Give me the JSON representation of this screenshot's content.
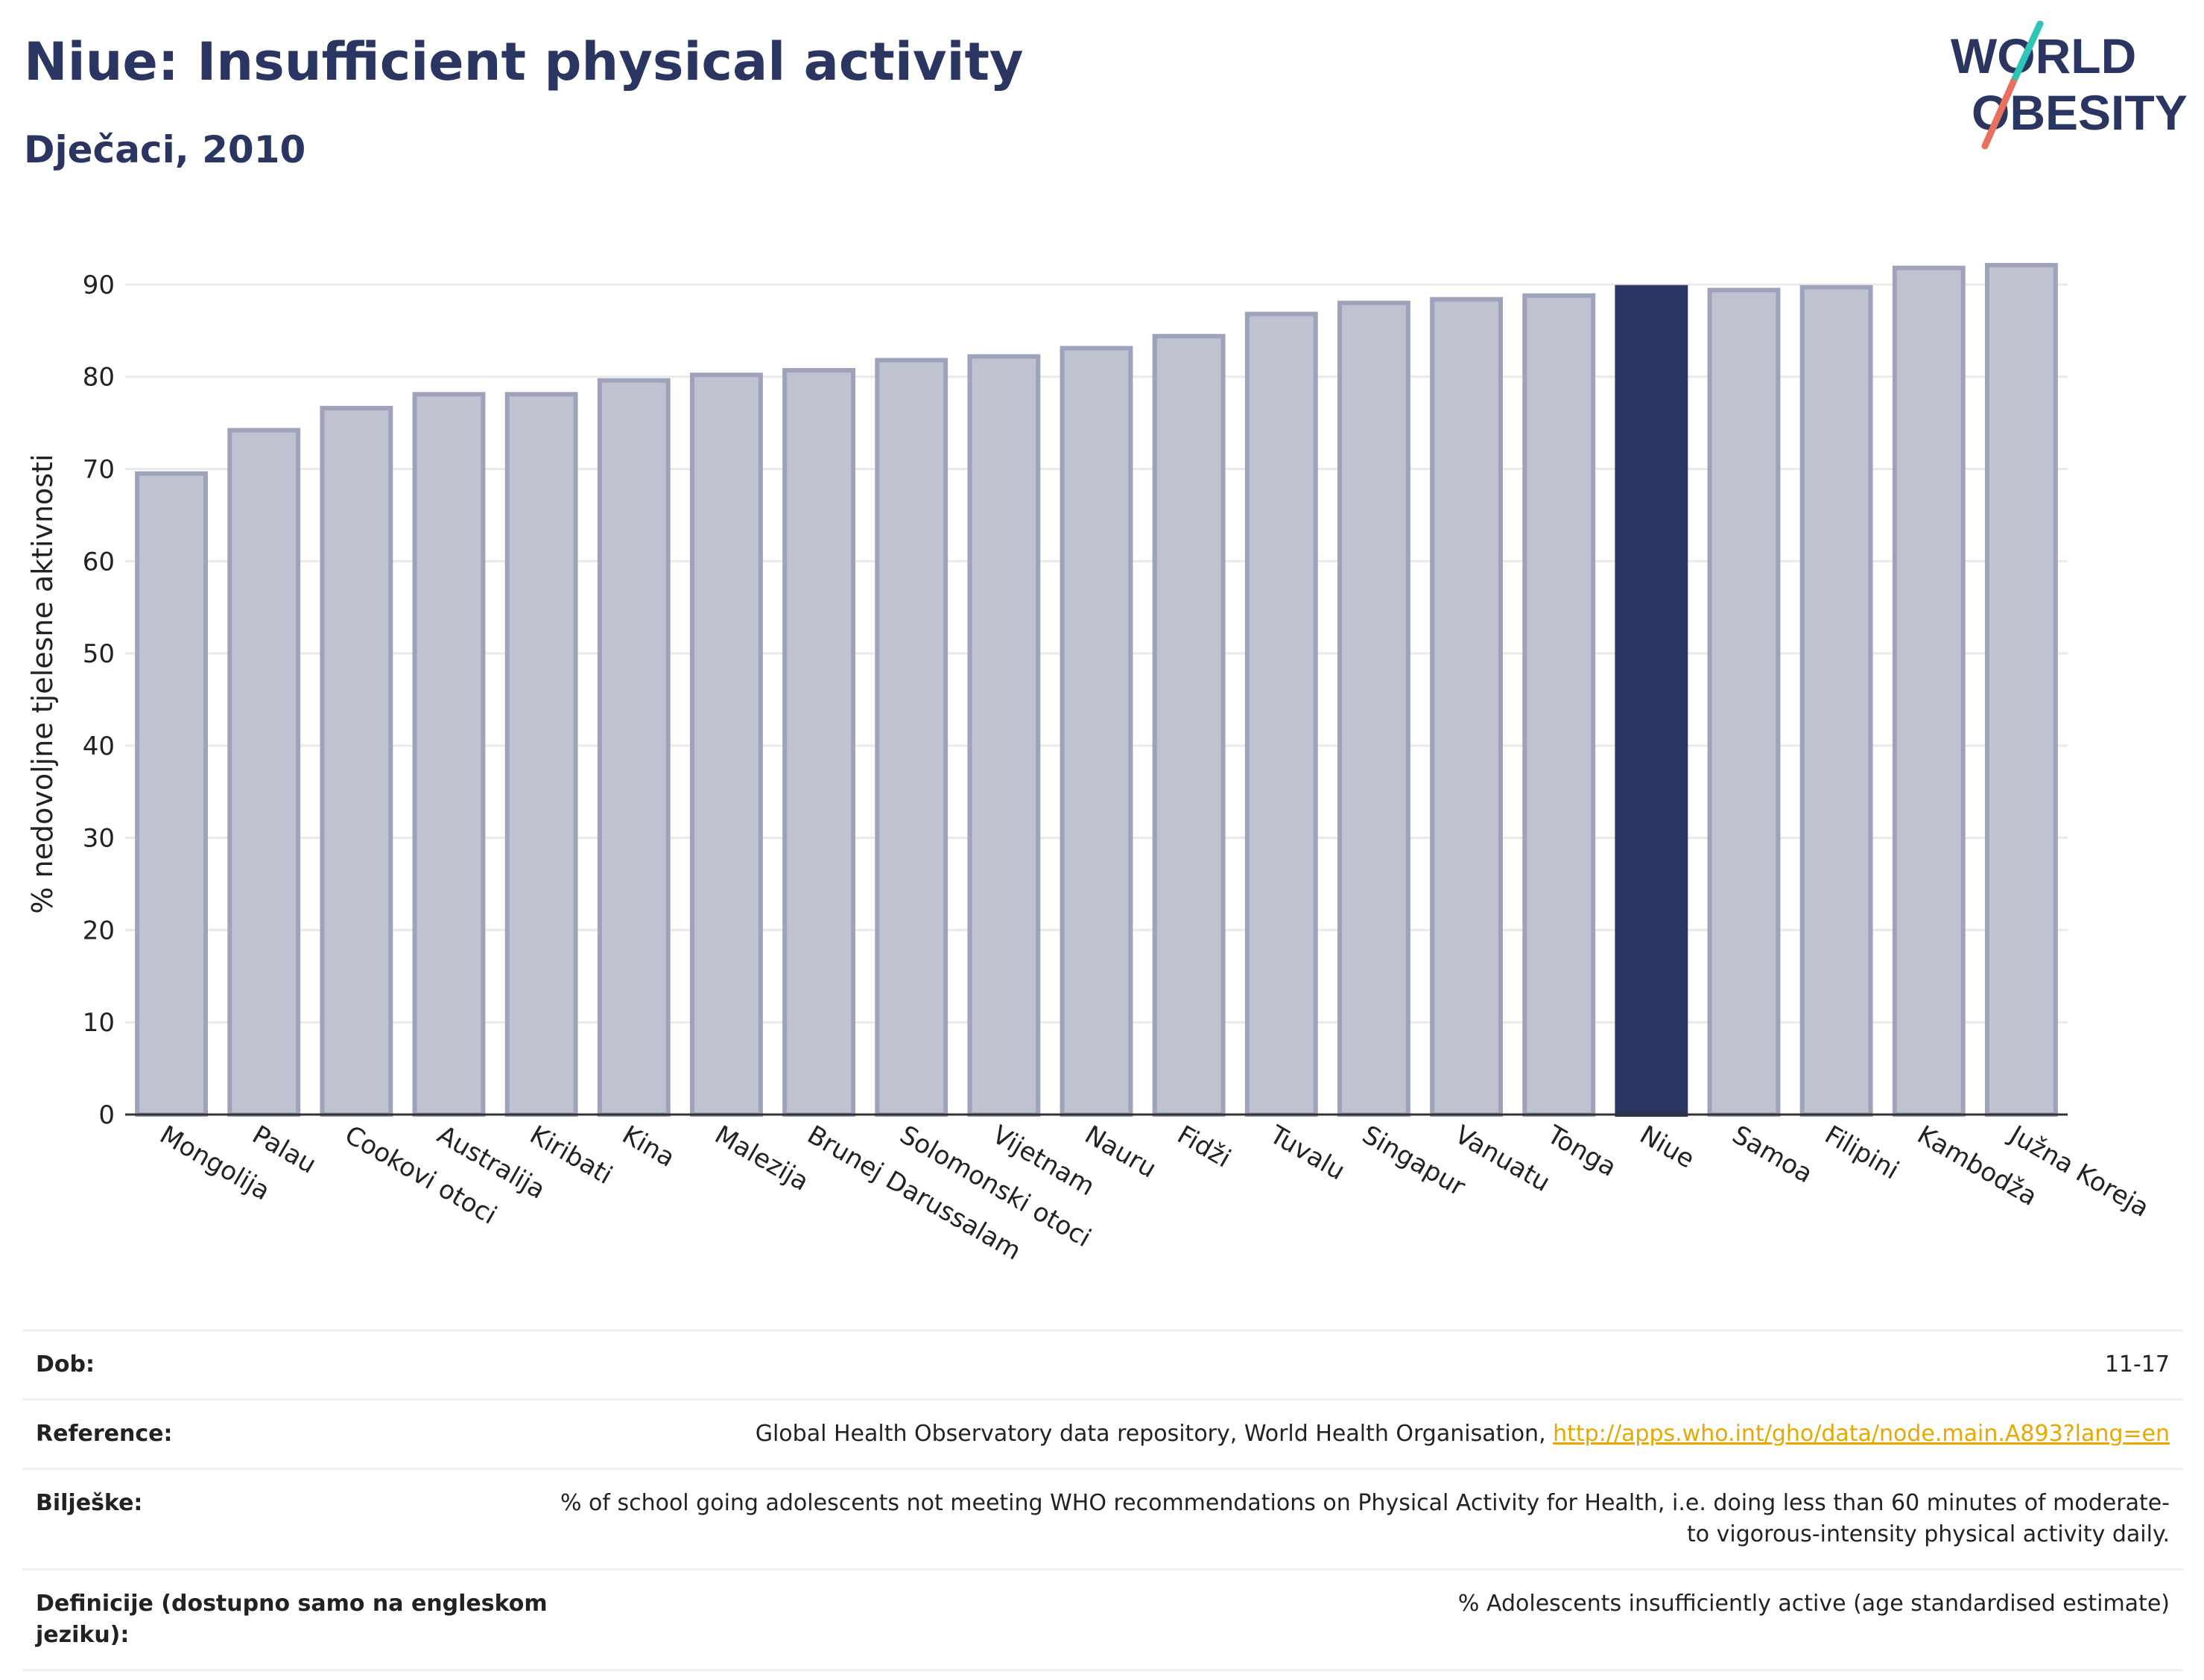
{
  "header": {
    "title": "Niue: Insufficient physical activity",
    "subtitle": "Dječaci, 2010"
  },
  "logo": {
    "line1": "WORLD",
    "line2": "OBESITY",
    "accent_teal": "#2ec4b6",
    "accent_coral": "#e8705e"
  },
  "colors": {
    "bar_fill": "#bfc2cf",
    "bar_stroke": "#9ea3bb",
    "highlight": "#2b3561"
  },
  "chart_data": {
    "type": "bar",
    "title": "Niue: Insufficient physical activity",
    "subtitle": "Dječaci, 2010",
    "ylabel": "% nedovoljne tjelesne aktivnosti",
    "xlabel": "",
    "ylim": [
      0,
      95
    ],
    "yticks": [
      0,
      10,
      20,
      30,
      40,
      50,
      60,
      70,
      80,
      90
    ],
    "grid": true,
    "highlight": "Niue",
    "categories": [
      "Mongolija",
      "Palau",
      "Cookovi otoci",
      "Australija",
      "Kiribati",
      "Kina",
      "Malezija",
      "Brunej Darussalam",
      "Solomonski otoci",
      "Vijetnam",
      "Nauru",
      "Fidži",
      "Tuvalu",
      "Singapur",
      "Vanuatu",
      "Tonga",
      "Niue",
      "Samoa",
      "Filipini",
      "Kambodža",
      "Južna Koreja"
    ],
    "values": [
      69.5,
      74.2,
      76.6,
      78.1,
      78.1,
      79.6,
      80.2,
      80.7,
      81.8,
      82.2,
      83.1,
      84.4,
      86.8,
      88.0,
      88.4,
      88.8,
      89.7,
      89.4,
      89.7,
      91.8,
      92.1
    ]
  },
  "info": {
    "rows": [
      {
        "key": "Dob:",
        "value": "11-17"
      },
      {
        "key": "Reference:",
        "value": "Global Health Observatory data repository, World Health Organisation, ",
        "link": "http://apps.who.int/gho/data/node.main.A893?lang=en"
      },
      {
        "key": "Bilješke:",
        "value": "% of school going adolescents not meeting WHO recommendations on Physical Activity for Health, i.e. doing less than 60 minutes of moderate- to vigorous-intensity physical activity daily."
      },
      {
        "key": "Definicije (dostupno samo na engleskom jeziku):",
        "value": "% Adolescents insufficiently active (age standardised estimate)"
      }
    ]
  }
}
